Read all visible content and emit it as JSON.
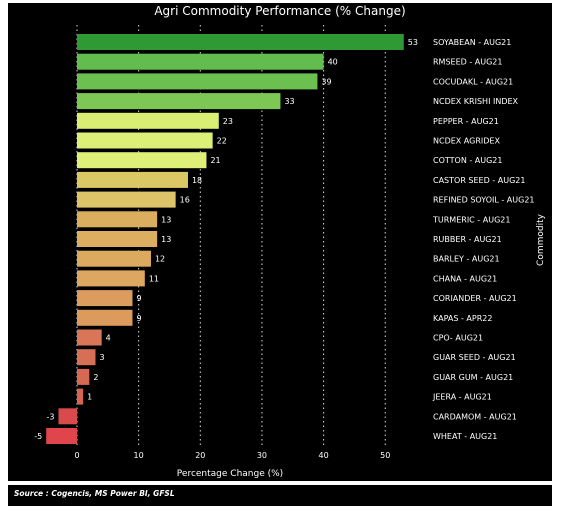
{
  "chart_data": {
    "type": "bar",
    "orientation": "horizontal",
    "title": "Agri Commodity Performance (% Change)",
    "xlabel": "Percentage Change (%)",
    "ylabel": "Commodity",
    "xlim": [
      -5,
      55
    ],
    "xticks": [
      0,
      10,
      20,
      30,
      40,
      50
    ],
    "grid": "vertical-dotted",
    "categories": [
      "SOYABEAN - AUG21",
      "RMSEED - AUG21",
      "COCUDAKL - AUG21",
      "NCDEX KRISHI INDEX",
      "PEPPER - AUG21",
      "NCDEX AGRIDEX",
      "COTTON - AUG21",
      "CASTOR SEED - AUG21",
      "REFINED SOYOIL - AUG21",
      "TURMERIC - AUG21",
      "RUBBER - AUG21",
      "BARLEY - AUG21",
      "CHANA - AUG21",
      "CORIANDER - AUG21",
      "KAPAS - APR22",
      "CPO- AUG21",
      "GUAR SEED - AUG21",
      "GUAR GUM - AUG21",
      "JEERA - AUG21",
      "CARDAMOM - AUG21",
      "WHEAT - AUG21"
    ],
    "values": [
      53,
      40,
      39,
      33,
      23,
      22,
      21,
      18,
      16,
      13,
      13,
      12,
      11,
      9,
      9,
      4,
      3,
      2,
      1,
      -3,
      -5
    ],
    "colors": [
      "#2f9a34",
      "#62bd4e",
      "#6cc050",
      "#7dc755",
      "#d9ef74",
      "#dcef76",
      "#def078",
      "#dcc765",
      "#dec468",
      "#dbad5e",
      "#dcae60",
      "#dcaa5f",
      "#dda761",
      "#dc9c5e",
      "#dc9a5d",
      "#d97658",
      "#d76f56",
      "#d66954",
      "#d56453",
      "#d94a4c",
      "#e0454c"
    ]
  },
  "source": "Source : Cogencis, MS Power BI, GFSL"
}
